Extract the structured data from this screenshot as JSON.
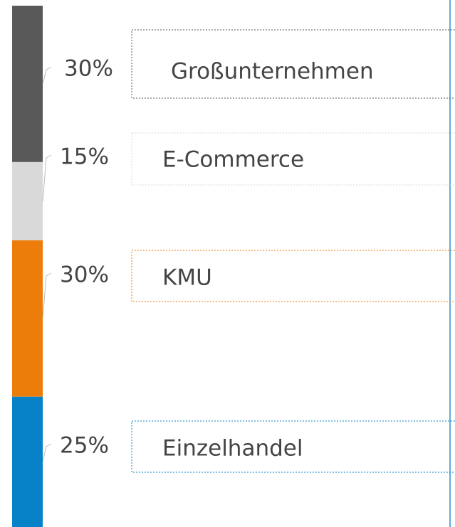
{
  "chart_data": {
    "type": "bar",
    "stacked": true,
    "ylim": [
      0,
      100
    ],
    "series": [
      {
        "name": "Großunternehmen",
        "color": "#595959",
        "values": [
          30
        ],
        "value_labels": [
          "30%"
        ]
      },
      {
        "name": "E-Commerce",
        "color": "#d9d9d9",
        "values": [
          15
        ],
        "value_labels": [
          "15%"
        ]
      },
      {
        "name": "KMU",
        "color": "#ed7d0a",
        "values": [
          30
        ],
        "value_labels": [
          "30%"
        ]
      },
      {
        "name": "Einzelhandel",
        "color": "#0782c8",
        "values": [
          25
        ],
        "value_labels": [
          "25%"
        ]
      }
    ]
  }
}
